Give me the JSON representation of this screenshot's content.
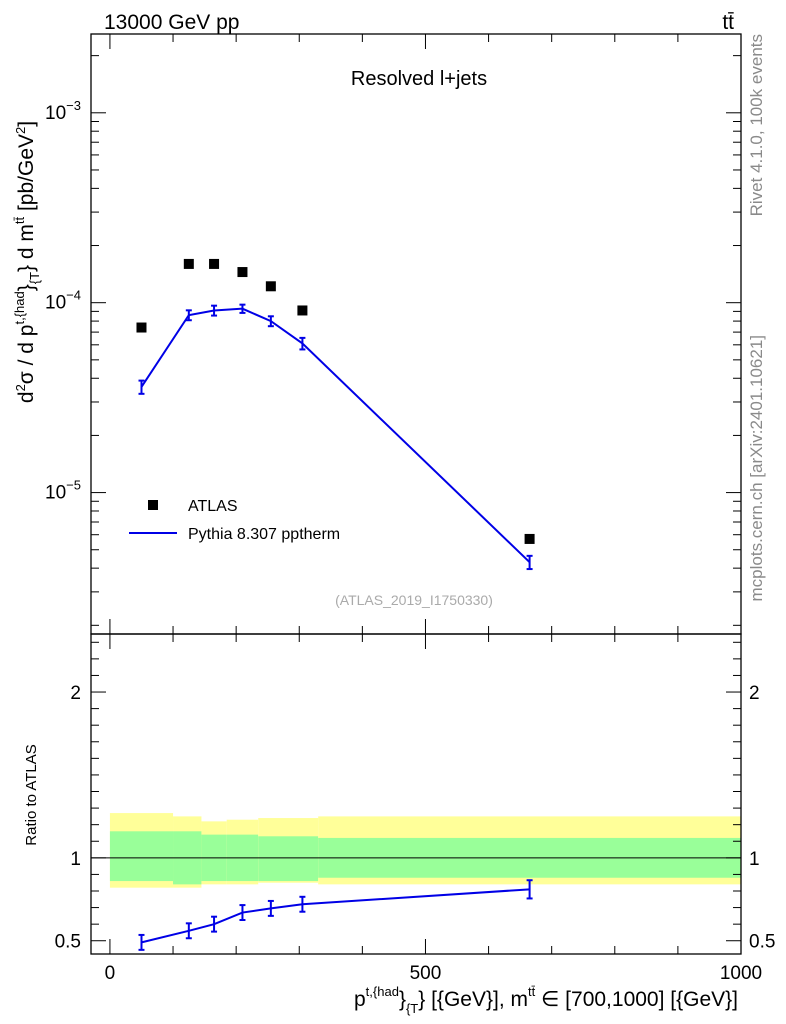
{
  "header": {
    "left_title": "13000 GeV pp",
    "right_title": "tt̄"
  },
  "side_labels": {
    "rivet": "Rivet 4.1.0,  100k events",
    "mcplots": "mcplots.cern.ch [arXiv:2401.10621]"
  },
  "colors": {
    "data_marker": "#000000",
    "mc_line": "#0000e6",
    "band_inner": "#99ff99",
    "band_outer": "#ffff99"
  },
  "chart_data": [
    {
      "type": "scatter",
      "panel": "main",
      "title": "Resolved l+jets",
      "analysis_id": "(ATLAS_2019_I1750330)",
      "xlabel": "p^{t,{had}}_{T} [{GeV}], m^{tt̄} ∈ [700,1000] [{GeV}]",
      "ylabel": "d²σ / d p^{t,{had}}_{T} d m^{tt̄} [pb/GeV²]",
      "xlim": [
        -30,
        1000
      ],
      "ylim": [
        1.8e-06,
        0.0026
      ],
      "yscale": "log",
      "ytick_labels": [
        "10^{-5}",
        "10^{-4}",
        "10^{-3}"
      ],
      "legend_placement": "bottom-left",
      "series": [
        {
          "name": "ATLAS",
          "style": "markers",
          "x": [
            50,
            125,
            165,
            210,
            255,
            305,
            665
          ],
          "y": [
            7.4e-05,
            0.00016,
            0.00016,
            0.000145,
            0.000122,
            9.1e-05,
            5.7e-06
          ]
        },
        {
          "name": "Pythia 8.307 pptherm",
          "style": "line",
          "x": [
            50,
            125,
            165,
            210,
            255,
            305,
            665
          ],
          "y": [
            3.6e-05,
            8.6e-05,
            9.1e-05,
            9.3e-05,
            8e-05,
            6.1e-05,
            4.3e-06
          ],
          "err": [
            0.08,
            0.06,
            0.06,
            0.05,
            0.06,
            0.07,
            0.08
          ]
        }
      ]
    },
    {
      "type": "line",
      "panel": "ratio",
      "ylabel": "Ratio to ATLAS",
      "xlim": [
        -30,
        1000
      ],
      "ylim": [
        0.42,
        2.35
      ],
      "ytick_labels": [
        "0.5",
        "1",
        "2"
      ],
      "xtick_labels": [
        "0",
        "500",
        "1000"
      ],
      "band_edges": [
        0,
        100,
        145,
        185,
        235,
        330,
        1000
      ],
      "band_inner": {
        "low": [
          0.86,
          0.84,
          0.86,
          0.86,
          0.86,
          0.88
        ],
        "high": [
          1.16,
          1.16,
          1.14,
          1.14,
          1.13,
          1.12
        ]
      },
      "band_outer": {
        "low": [
          0.82,
          0.82,
          0.84,
          0.84,
          0.85,
          0.84
        ],
        "high": [
          1.27,
          1.25,
          1.22,
          1.23,
          1.24,
          1.25
        ]
      },
      "series": [
        {
          "name": "Pythia 8.307 pptherm",
          "x": [
            50,
            125,
            165,
            210,
            255,
            305,
            665
          ],
          "y": [
            0.49,
            0.56,
            0.6,
            0.67,
            0.695,
            0.72,
            0.81
          ],
          "err_low": [
            0.045,
            0.045,
            0.045,
            0.045,
            0.045,
            0.045,
            0.055
          ],
          "err_high": [
            0.045,
            0.045,
            0.045,
            0.045,
            0.045,
            0.045,
            0.055
          ]
        }
      ]
    }
  ]
}
